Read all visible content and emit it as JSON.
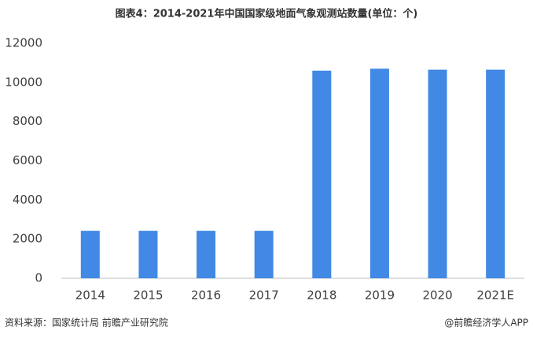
{
  "chart_data": {
    "type": "bar",
    "title": "图表4：2014-2021年中国国家级地面气象观测站数量(单位：个)",
    "categories": [
      "2014",
      "2015",
      "2016",
      "2017",
      "2018",
      "2019",
      "2020",
      "2021E"
    ],
    "values": [
      2420,
      2420,
      2420,
      2420,
      10600,
      10700,
      10650,
      10650
    ],
    "color": "#4189e4",
    "ylim": [
      0,
      12000
    ],
    "yticks": [
      0,
      2000,
      4000,
      6000,
      8000,
      10000,
      12000
    ],
    "grid": false,
    "source": "资料来源：国家统计局 前瞻产业研究院",
    "credit": "@前瞻经济学人APP"
  }
}
